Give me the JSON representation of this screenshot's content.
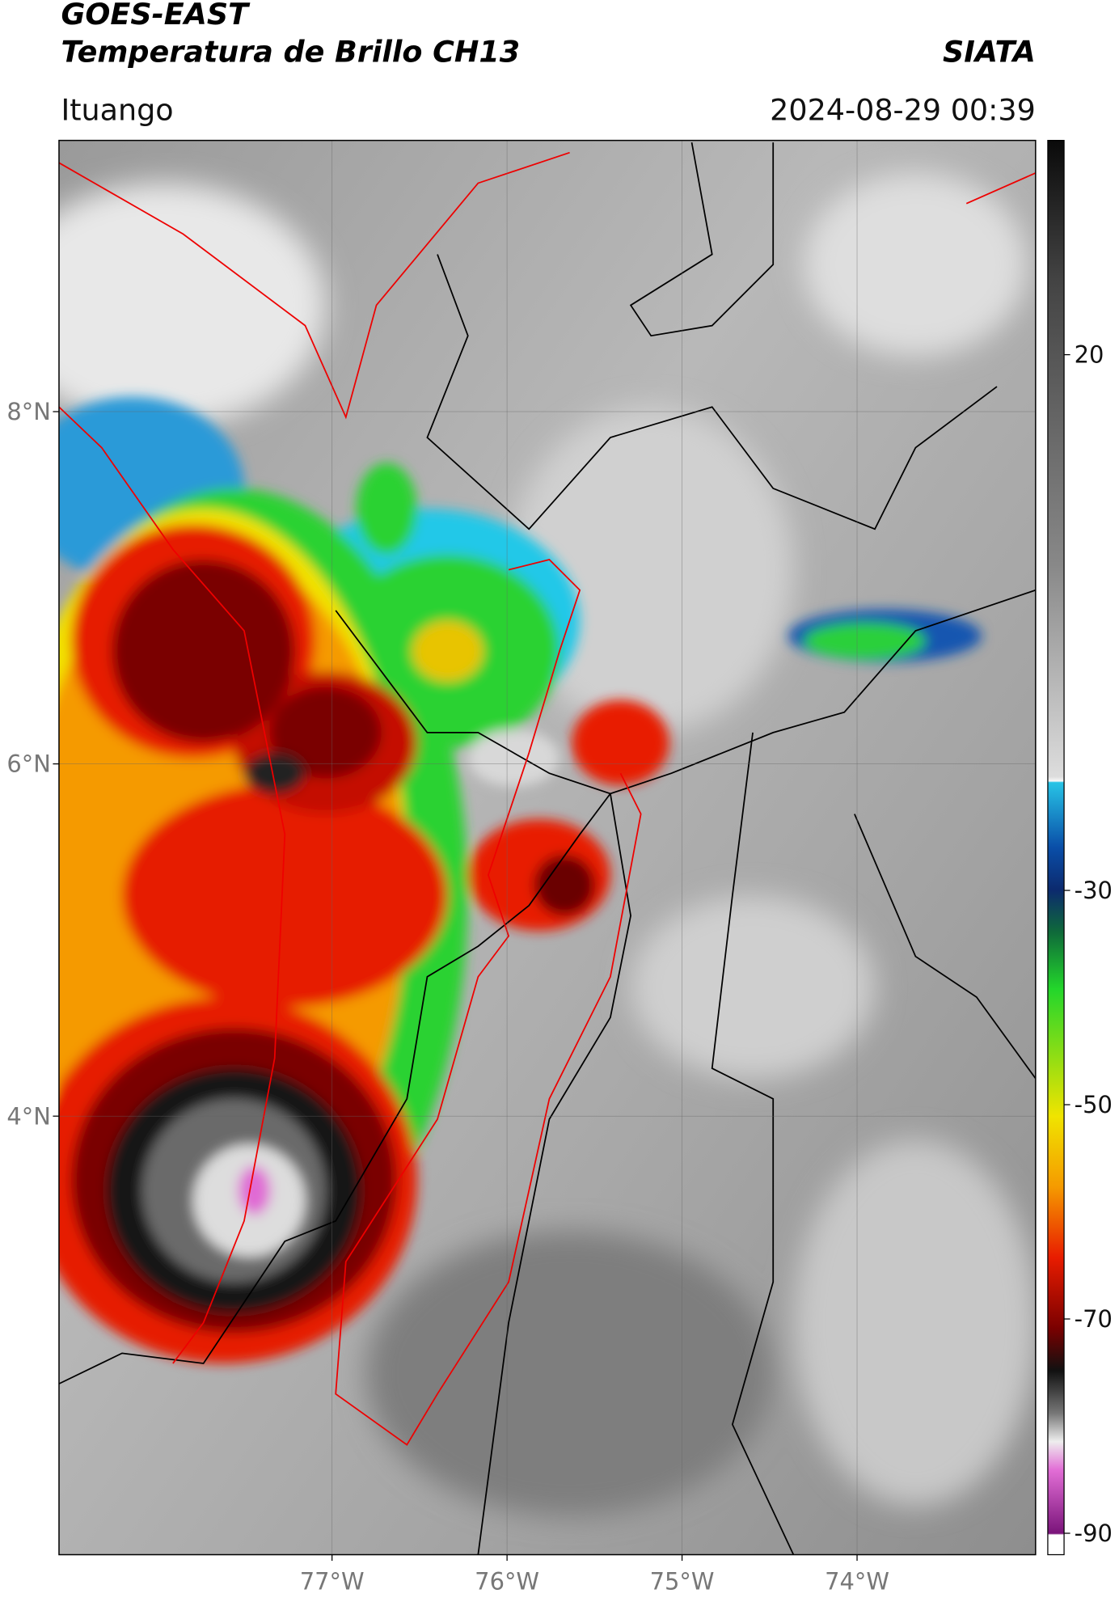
{
  "header": {
    "title": "GOES-EAST",
    "subtitle": "Temperatura de Brillo CH13",
    "source": "SIATA",
    "location": "Ituango",
    "datetime": "2024-08-29 00:39"
  },
  "map": {
    "xlim": [
      -78.56,
      -72.98
    ],
    "ylim": [
      1.51,
      9.54
    ],
    "xticks": [
      {
        "value": -77,
        "label": "77°W"
      },
      {
        "value": -76,
        "label": "76°W"
      },
      {
        "value": -75,
        "label": "75°W"
      },
      {
        "value": -74,
        "label": "74°W"
      }
    ],
    "yticks": [
      {
        "value": 8,
        "label": "8°N"
      },
      {
        "value": 6,
        "label": "6°N"
      },
      {
        "value": 4,
        "label": "4°N"
      }
    ],
    "grid": true
  },
  "colorbar": {
    "lim": [
      -92,
      40
    ],
    "ticks": [
      20,
      -30,
      -50,
      -70,
      -90
    ]
  }
}
